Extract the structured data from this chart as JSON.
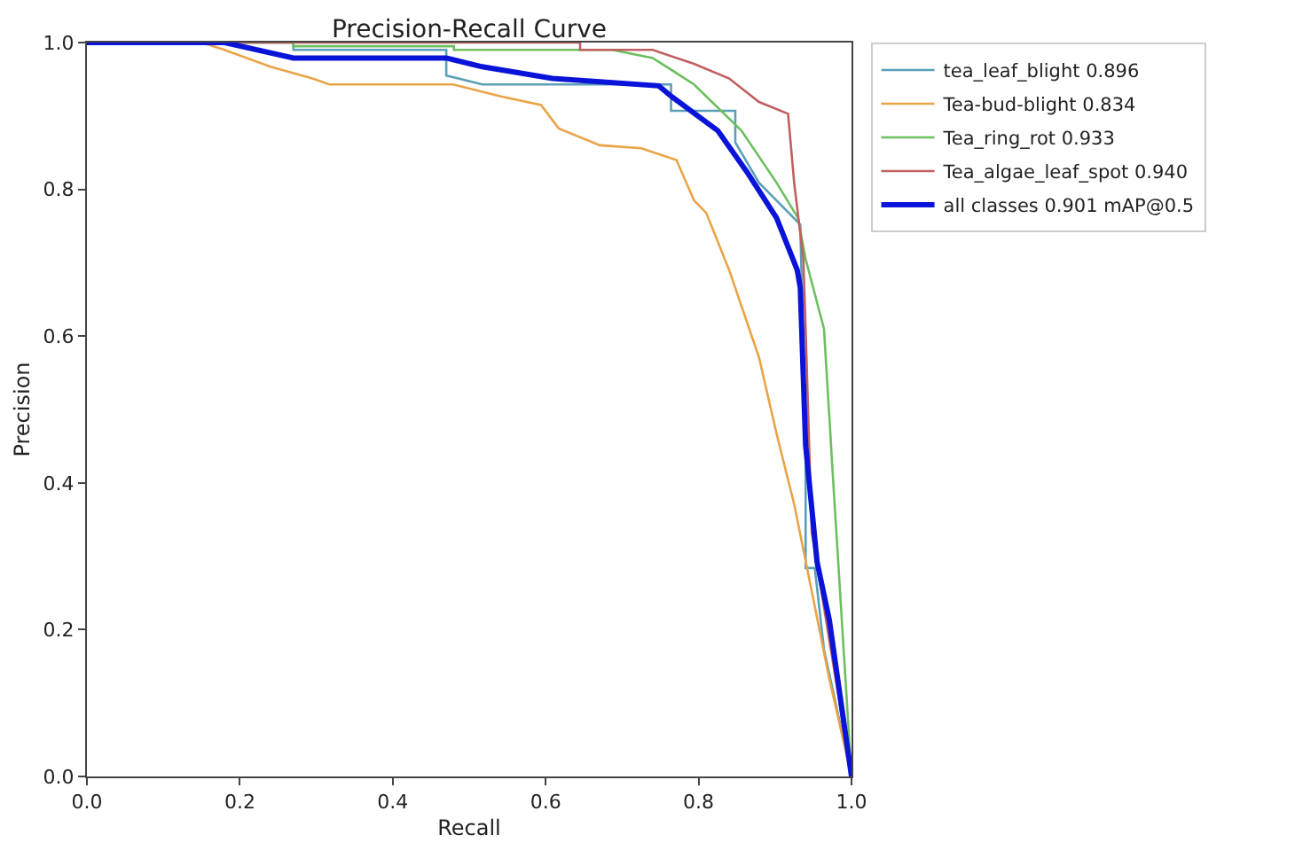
{
  "chart_data": {
    "type": "line",
    "title": "Precision-Recall Curve",
    "xlabel": "Recall",
    "ylabel": "Precision",
    "xlim": [
      0,
      1
    ],
    "ylim": [
      0,
      1
    ],
    "xticks": [
      {
        "value": 0,
        "label": "0.0"
      },
      0.2,
      0.4,
      0.6,
      0.8,
      {
        "value": 1,
        "label": "1.0"
      }
    ],
    "yticks": [
      {
        "value": 0,
        "label": "0.0"
      },
      0.2,
      0.4,
      0.6,
      0.8,
      {
        "value": 1,
        "label": "1.0"
      }
    ],
    "legend": "top right",
    "marker": "none",
    "line_style": "solid",
    "series": [
      {
        "name": "tea_leaf_blight 0.896",
        "color": "#5a9fb8",
        "x": [
          0,
          0.27,
          0.27,
          0.47,
          0.47,
          0.517,
          0.764,
          0.764,
          0.848,
          0.848,
          0.879,
          0.933,
          0.94,
          0.94,
          0.952,
          0.964,
          1.0
        ],
        "values": [
          1.0,
          1.0,
          0.99,
          0.99,
          0.955,
          0.943,
          0.943,
          0.907,
          0.907,
          0.864,
          0.809,
          0.752,
          0.451,
          0.284,
          0.284,
          0.173,
          0.0
        ]
      },
      {
        "name": "Tea-bud-blight 0.834",
        "color": "#e9a447",
        "x": [
          0,
          0.15,
          0.18,
          0.24,
          0.295,
          0.317,
          0.479,
          0.54,
          0.594,
          0.617,
          0.671,
          0.725,
          0.771,
          0.794,
          0.81,
          0.84,
          0.879,
          0.902,
          0.925,
          0.948,
          0.971,
          1.0
        ],
        "values": [
          1.0,
          1.0,
          0.99,
          0.967,
          0.951,
          0.943,
          0.943,
          0.927,
          0.915,
          0.883,
          0.86,
          0.856,
          0.84,
          0.785,
          0.768,
          0.69,
          0.571,
          0.467,
          0.371,
          0.252,
          0.133,
          0.0
        ]
      },
      {
        "name": "Tea_ring_rot 0.933",
        "color": "#6cbf5f",
        "x": [
          0,
          0.27,
          0.27,
          0.48,
          0.48,
          0.687,
          0.74,
          0.794,
          0.856,
          0.902,
          0.93,
          0.94,
          0.964,
          0.971,
          0.975,
          1.0
        ],
        "values": [
          1.0,
          1.0,
          0.995,
          0.995,
          0.99,
          0.99,
          0.979,
          0.943,
          0.88,
          0.809,
          0.761,
          0.705,
          0.61,
          0.49,
          0.42,
          0.0
        ]
      },
      {
        "name": "Tea_algae_leaf_spot 0.940",
        "color": "#c06060",
        "x": [
          0,
          0.645,
          0.645,
          0.74,
          0.794,
          0.84,
          0.879,
          0.917,
          0.925,
          0.937,
          0.94,
          0.948,
          1.0
        ],
        "values": [
          1.0,
          1.0,
          0.99,
          0.99,
          0.971,
          0.951,
          0.919,
          0.903,
          0.809,
          0.705,
          0.61,
          0.333,
          0.0
        ]
      },
      {
        "name": "all classes 0.901 mAP@0.5",
        "color": "#0a14d8",
        "x": [
          0,
          0.18,
          0.27,
          0.47,
          0.517,
          0.609,
          0.748,
          0.764,
          0.825,
          0.863,
          0.902,
          0.929,
          0.933,
          0.94,
          0.955,
          0.971,
          1.0
        ],
        "values": [
          1.0,
          1.0,
          0.979,
          0.979,
          0.967,
          0.951,
          0.941,
          0.927,
          0.88,
          0.824,
          0.761,
          0.69,
          0.666,
          0.451,
          0.292,
          0.213,
          0.0
        ]
      }
    ]
  }
}
